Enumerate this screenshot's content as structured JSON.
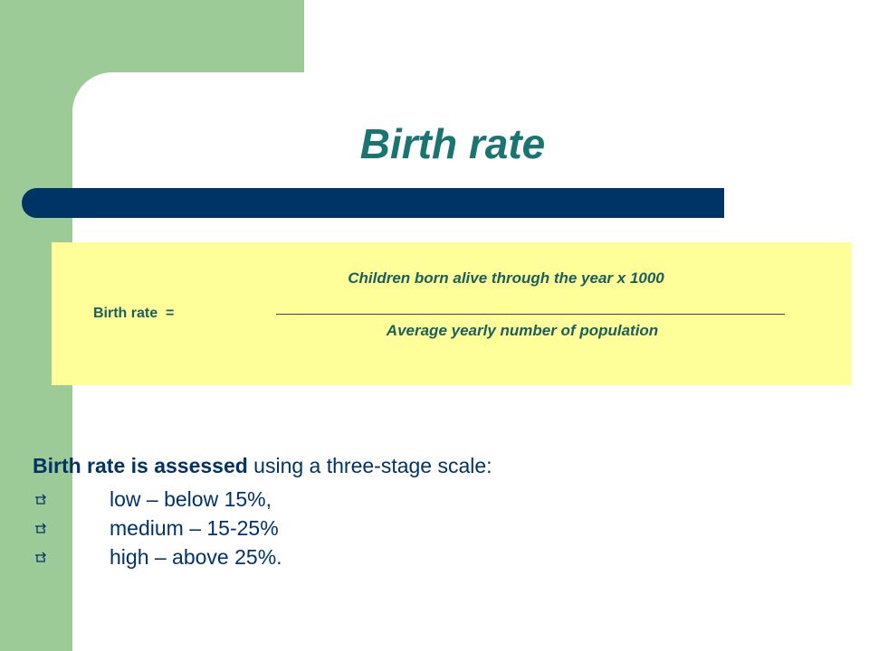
{
  "slide": {
    "title": "Birth rate",
    "colors": {
      "green_band": "#9dcb97",
      "title_teal": "#1a7470",
      "navy_bar": "#003366",
      "formula_bg": "#ffff99",
      "body_text": "#003366"
    }
  },
  "formula": {
    "lhs": "Birth rate  =",
    "numerator": "Children born alive through the year  x  1000",
    "denominator": "Average yearly number of population"
  },
  "assessment": {
    "intro_bold": "Birth rate is assessed",
    "intro_rest": " using a three-stage scale:",
    "bullet_icon": "pointing-hand-icon",
    "levels": [
      "low – below 15%,",
      "medium – 15-25%",
      "high – above 25%."
    ]
  }
}
